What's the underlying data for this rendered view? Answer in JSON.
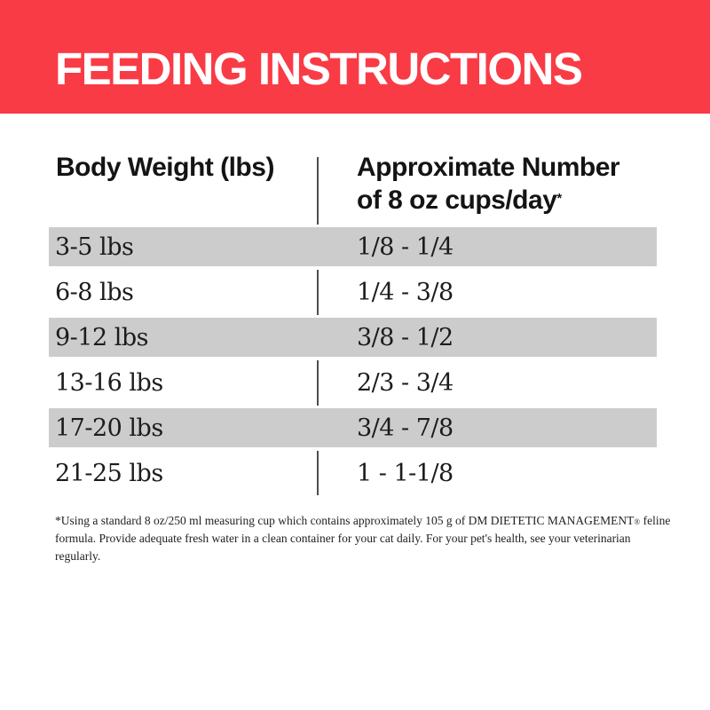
{
  "banner": {
    "title": "FEEDING INSTRUCTIONS",
    "background_color": "#f93b46",
    "text_color": "#ffffff"
  },
  "table": {
    "columns": {
      "body_weight_header": "Body Weight (lbs)",
      "cups_header_line1": "Approximate Number",
      "cups_header_line2": "of 8 oz cups/day",
      "cups_header_footnote_mark": "*"
    },
    "shaded_row_color": "#cccccc",
    "rows": [
      {
        "body_weight": "3-5 lbs",
        "cups_per_day": "1/8 - 1/4"
      },
      {
        "body_weight": "6-8 lbs",
        "cups_per_day": "1/4 - 3/8"
      },
      {
        "body_weight": "9-12 lbs",
        "cups_per_day": "3/8 - 1/2"
      },
      {
        "body_weight": "13-16 lbs",
        "cups_per_day": "2/3 - 3/4"
      },
      {
        "body_weight": "17-20 lbs",
        "cups_per_day": "3/4 - 7/8"
      },
      {
        "body_weight": "21-25 lbs",
        "cups_per_day": "1 - 1-1/8"
      }
    ]
  },
  "footnote": {
    "part1": "*Using a standard 8 oz/250 ml measuring cup which contains approximately 105 g of DM DIETETIC MANAGEMENT",
    "registered_mark": "®",
    "part2": " feline formula. Provide adequate fresh water in a clean container for your cat daily. For your pet's health, see your veterinarian regularly."
  }
}
